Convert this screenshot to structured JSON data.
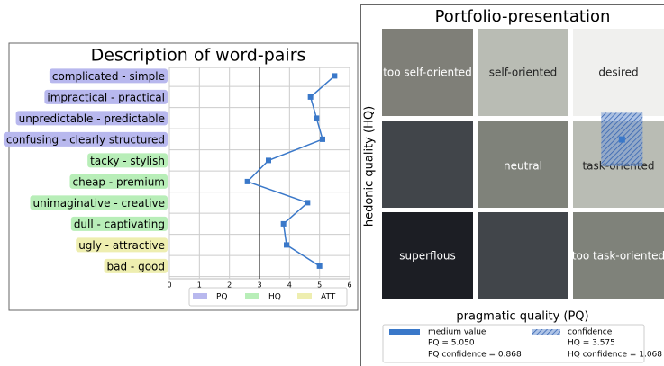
{
  "chart_data": [
    {
      "type": "line",
      "title": "Description of word-pairs",
      "categories": [
        "complicated - simple",
        "impractical - practical",
        "unpredictable - predictable",
        "confusing - clearly structured",
        "tacky - stylish",
        "cheap - premium",
        "unimaginative - creative",
        "dull - captivating",
        "ugly - attractive",
        "bad - good"
      ],
      "values": [
        5.5,
        4.7,
        4.9,
        5.1,
        3.3,
        2.6,
        4.6,
        3.8,
        3.9,
        5.0
      ],
      "color": "#3a78c9",
      "groups": [
        "PQ",
        "PQ",
        "PQ",
        "PQ",
        "HQ",
        "HQ",
        "HQ",
        "HQ",
        "ATT",
        "ATT"
      ],
      "legend": [
        {
          "name": "PQ",
          "color": "#b8b8ee"
        },
        {
          "name": "HQ",
          "color": "#b8eeb8"
        },
        {
          "name": "ATT",
          "color": "#eeeeb0"
        }
      ],
      "xlim": [
        0,
        6
      ],
      "xticks": [
        0,
        1,
        2,
        3,
        4,
        5,
        6
      ],
      "reference_line": 3,
      "grid": true
    },
    {
      "type": "scatter",
      "title": "Portfolio-presentation",
      "xlabel": "pragmatic quality (PQ)",
      "ylabel": "hedonic quality (HQ)",
      "xlim": [
        -5,
        7
      ],
      "ylim": [
        -3,
        8
      ],
      "regions": [
        [
          "too self-oriented",
          "self-oriented",
          "desired"
        ],
        [
          null,
          "neutral",
          "task-oriented"
        ],
        [
          "superflous",
          null,
          "too task-oriented"
        ]
      ],
      "region_colors": [
        [
          "#7f7f78",
          "#b9bcb4",
          "#f0f0ee"
        ],
        [
          "#41454a",
          "#7f827a",
          "#b9bcb4"
        ],
        [
          "#1c1e24",
          "#41454a",
          "#7f827a"
        ]
      ],
      "point": {
        "pq": 5.05,
        "hq": 3.575,
        "pq_conf": 0.868,
        "hq_conf": 1.068
      },
      "color": "#3a78c9",
      "legend": {
        "medium": "medium value",
        "confidence": "confidence",
        "pq": "PQ = 5.050",
        "pq_conf": "PQ confidence = 0.868",
        "hq": "HQ = 3.575",
        "hq_conf": "HQ confidence = 1.068"
      }
    }
  ]
}
